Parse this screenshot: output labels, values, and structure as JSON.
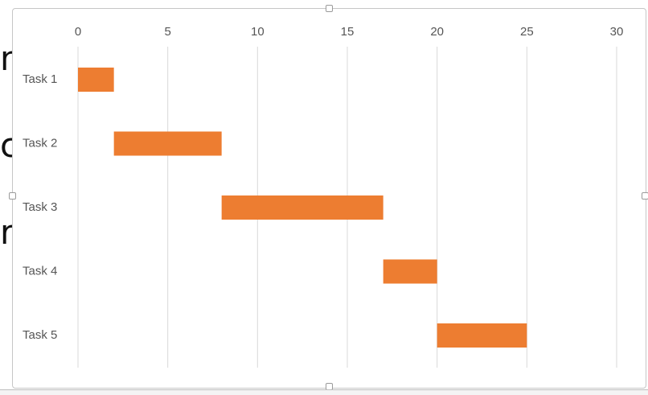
{
  "background_glyphs": [
    "n",
    "c",
    "r"
  ],
  "chart_data": {
    "type": "bar",
    "orientation": "horizontal",
    "variant": "gantt",
    "x_axis_position": "top",
    "xlim": [
      0,
      30
    ],
    "x_ticks": [
      0,
      5,
      10,
      15,
      20,
      25,
      30
    ],
    "grid": "vertical",
    "legend": "none",
    "categories": [
      "Task 1",
      "Task 2",
      "Task 3",
      "Task 4",
      "Task 5"
    ],
    "series": [
      {
        "start": [
          0,
          2,
          8,
          17,
          20
        ],
        "end": [
          2,
          8,
          17,
          20,
          25
        ]
      }
    ],
    "colors": {
      "bar": "#ED7D31",
      "grid": "#D9D9D9",
      "text": "#555555"
    }
  }
}
